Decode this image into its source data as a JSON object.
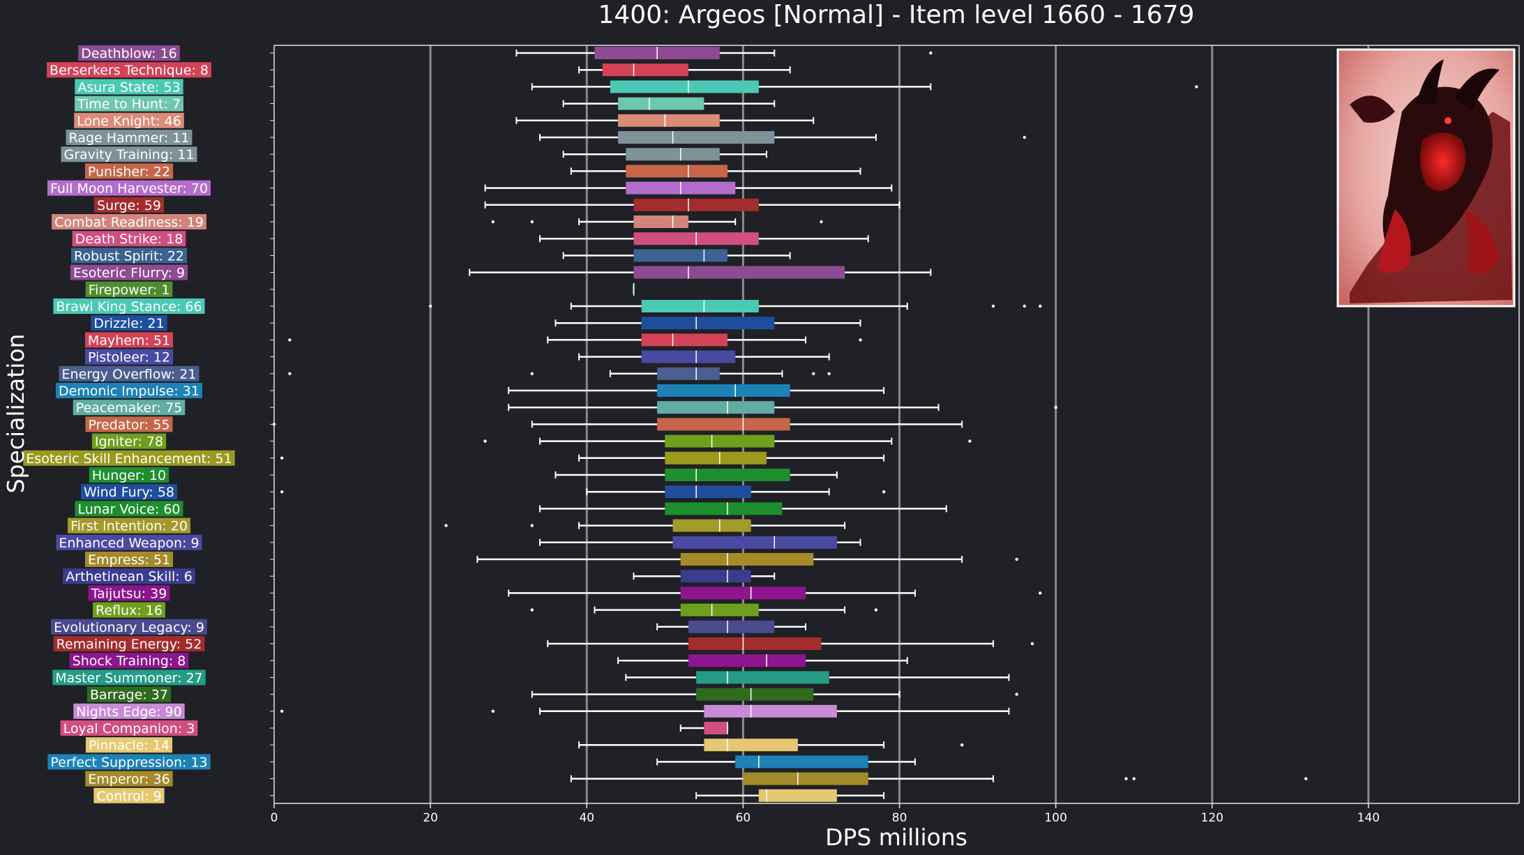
{
  "chart_data": {
    "type": "box",
    "title": "1400: Argeos [Normal] - Item level 1660 - 1679",
    "xlabel": "DPS millions",
    "ylabel": "Specialization",
    "xlim": [
      0,
      159
    ],
    "xticks": [
      0,
      20,
      40,
      60,
      80,
      100,
      120,
      140
    ],
    "grid": "vertical",
    "series": [
      {
        "label": "Deathblow: 16",
        "color": "#8e4b93",
        "min": 31,
        "q1": 41,
        "median": 49,
        "q3": 57,
        "max": 64,
        "outliers": [
          84
        ]
      },
      {
        "label": "Berserkers Technique: 8",
        "color": "#d44258",
        "min": 39,
        "q1": 42,
        "median": 46,
        "q3": 53,
        "max": 66,
        "outliers": []
      },
      {
        "label": "Asura State: 53",
        "color": "#4bc9b4",
        "min": 33,
        "q1": 43,
        "median": 53,
        "q3": 62,
        "max": 84,
        "outliers": [
          118
        ]
      },
      {
        "label": "Time to Hunt: 7",
        "color": "#6fc6b1",
        "min": 37,
        "q1": 44,
        "median": 48,
        "q3": 55,
        "max": 64,
        "outliers": []
      },
      {
        "label": "Lone Knight: 46",
        "color": "#db8b78",
        "min": 31,
        "q1": 44,
        "median": 50,
        "q3": 57,
        "max": 69,
        "outliers": []
      },
      {
        "label": "Rage Hammer: 11",
        "color": "#7e929a",
        "min": 34,
        "q1": 44,
        "median": 51,
        "q3": 64,
        "max": 77,
        "outliers": [
          96
        ]
      },
      {
        "label": "Gravity Training: 11",
        "color": "#7e929a",
        "min": 37,
        "q1": 45,
        "median": 52,
        "q3": 57,
        "max": 63,
        "outliers": []
      },
      {
        "label": "Punisher: 22",
        "color": "#c7664a",
        "min": 38,
        "q1": 45,
        "median": 53,
        "q3": 58,
        "max": 75,
        "outliers": []
      },
      {
        "label": "Full Moon Harvester: 70",
        "color": "#b46dcc",
        "min": 27,
        "q1": 45,
        "median": 52,
        "q3": 59,
        "max": 79,
        "outliers": []
      },
      {
        "label": "Surge: 59",
        "color": "#a32c2c",
        "min": 27,
        "q1": 46,
        "median": 53,
        "q3": 62,
        "max": 80,
        "outliers": []
      },
      {
        "label": "Combat Readiness: 19",
        "color": "#d1857a",
        "min": 39,
        "q1": 46,
        "median": 51,
        "q3": 53,
        "max": 59,
        "outliers": [
          28,
          33,
          70
        ]
      },
      {
        "label": "Death Strike: 18",
        "color": "#d14e80",
        "min": 34,
        "q1": 46,
        "median": 54,
        "q3": 62,
        "max": 76,
        "outliers": []
      },
      {
        "label": "Robust Spirit: 22",
        "color": "#3b6291",
        "min": 37,
        "q1": 46,
        "median": 55,
        "q3": 58,
        "max": 66,
        "outliers": []
      },
      {
        "label": "Esoteric Flurry: 9",
        "color": "#8e4b93",
        "min": 25,
        "q1": 46,
        "median": 53,
        "q3": 73,
        "max": 84,
        "outliers": []
      },
      {
        "label": "Firepower: 1",
        "color": "#4d8f2e",
        "min": 46,
        "q1": 46,
        "median": 46,
        "q3": 46,
        "max": 46,
        "outliers": []
      },
      {
        "label": "Brawl King Stance: 66",
        "color": "#4bc9b4",
        "min": 38,
        "q1": 47,
        "median": 55,
        "q3": 62,
        "max": 81,
        "outliers": [
          20,
          92,
          96,
          98
        ]
      },
      {
        "label": "Drizzle: 21",
        "color": "#1f4e9e",
        "min": 36,
        "q1": 47,
        "median": 54,
        "q3": 64,
        "max": 75,
        "outliers": []
      },
      {
        "label": "Mayhem: 51",
        "color": "#d44258",
        "min": 35,
        "q1": 47,
        "median": 51,
        "q3": 58,
        "max": 68,
        "outliers": [
          2,
          75
        ]
      },
      {
        "label": "Pistoleer: 12",
        "color": "#4a4aa3",
        "min": 39,
        "q1": 47,
        "median": 54,
        "q3": 59,
        "max": 71,
        "outliers": []
      },
      {
        "label": "Energy Overflow: 21",
        "color": "#4c5e8f",
        "min": 43,
        "q1": 49,
        "median": 54,
        "q3": 57,
        "max": 65,
        "outliers": [
          2,
          33,
          69,
          71
        ]
      },
      {
        "label": "Demonic Impulse: 31",
        "color": "#1c82b8",
        "min": 30,
        "q1": 49,
        "median": 59,
        "q3": 66,
        "max": 78,
        "outliers": []
      },
      {
        "label": "Peacemaker: 75",
        "color": "#5fada3",
        "min": 30,
        "q1": 49,
        "median": 58,
        "q3": 64,
        "max": 85,
        "outliers": [
          100
        ]
      },
      {
        "label": "Predator: 55",
        "color": "#c7664a",
        "min": 33,
        "q1": 49,
        "median": 60,
        "q3": 66,
        "max": 88,
        "outliers": [
          0
        ]
      },
      {
        "label": "Igniter: 78",
        "color": "#6f9f1e",
        "min": 34,
        "q1": 50,
        "median": 56,
        "q3": 64,
        "max": 79,
        "outliers": [
          27,
          89
        ]
      },
      {
        "label": "Esoteric Skill Enhancement: 51",
        "color": "#9a9a1e",
        "min": 39,
        "q1": 50,
        "median": 57,
        "q3": 63,
        "max": 78,
        "outliers": [
          1
        ]
      },
      {
        "label": "Hunger: 10",
        "color": "#1e8f2e",
        "min": 36,
        "q1": 50,
        "median": 54,
        "q3": 66,
        "max": 72,
        "outliers": []
      },
      {
        "label": "Wind Fury: 58",
        "color": "#1f4e9e",
        "min": 40,
        "q1": 50,
        "median": 54,
        "q3": 61,
        "max": 71,
        "outliers": [
          1,
          78
        ]
      },
      {
        "label": "Lunar Voice: 60",
        "color": "#1e8f2e",
        "min": 34,
        "q1": 50,
        "median": 58,
        "q3": 65,
        "max": 86,
        "outliers": []
      },
      {
        "label": "First Intention: 20",
        "color": "#a39a2a",
        "min": 39,
        "q1": 51,
        "median": 57,
        "q3": 61,
        "max": 73,
        "outliers": [
          22,
          33
        ]
      },
      {
        "label": "Enhanced Weapon: 9",
        "color": "#4a4aa3",
        "min": 34,
        "q1": 51,
        "median": 64,
        "q3": 72,
        "max": 75,
        "outliers": []
      },
      {
        "label": "Empress: 51",
        "color": "#a58a2a",
        "min": 26,
        "q1": 52,
        "median": 58,
        "q3": 69,
        "max": 88,
        "outliers": [
          95
        ]
      },
      {
        "label": "Arthetinean Skill: 6",
        "color": "#3b3b8f",
        "min": 46,
        "q1": 52,
        "median": 58,
        "q3": 61,
        "max": 64,
        "outliers": []
      },
      {
        "label": "Taijutsu: 39",
        "color": "#8e158e",
        "min": 30,
        "q1": 52,
        "median": 61,
        "q3": 68,
        "max": 82,
        "outliers": [
          98
        ]
      },
      {
        "label": "Reflux: 16",
        "color": "#6f9f1e",
        "min": 41,
        "q1": 52,
        "median": 56,
        "q3": 62,
        "max": 73,
        "outliers": [
          33,
          77
        ]
      },
      {
        "label": "Evolutionary Legacy: 9",
        "color": "#4a4a8f",
        "min": 49,
        "q1": 53,
        "median": 58,
        "q3": 64,
        "max": 68,
        "outliers": []
      },
      {
        "label": "Remaining Energy: 52",
        "color": "#a32c2c",
        "min": 35,
        "q1": 53,
        "median": 60,
        "q3": 70,
        "max": 92,
        "outliers": [
          97
        ]
      },
      {
        "label": "Shock Training: 8",
        "color": "#8e158e",
        "min": 44,
        "q1": 53,
        "median": 63,
        "q3": 68,
        "max": 81,
        "outliers": []
      },
      {
        "label": "Master Summoner: 27",
        "color": "#249c86",
        "min": 45,
        "q1": 54,
        "median": 58,
        "q3": 71,
        "max": 94,
        "outliers": []
      },
      {
        "label": "Barrage: 37",
        "color": "#2f6b1e",
        "min": 33,
        "q1": 54,
        "median": 61,
        "q3": 69,
        "max": 80,
        "outliers": [
          95
        ]
      },
      {
        "label": "Nights Edge: 90",
        "color": "#c98ad6",
        "min": 34,
        "q1": 55,
        "median": 61,
        "q3": 72,
        "max": 94,
        "outliers": [
          1,
          28
        ]
      },
      {
        "label": "Loyal Companion: 3",
        "color": "#d14e80",
        "min": 52,
        "q1": 55,
        "median": 58,
        "q3": 58,
        "max": 58,
        "outliers": []
      },
      {
        "label": "Pinnacle: 14",
        "color": "#e6c870",
        "min": 39,
        "q1": 55,
        "median": 58,
        "q3": 67,
        "max": 78,
        "outliers": [
          88
        ]
      },
      {
        "label": "Perfect Suppression: 13",
        "color": "#1c82b8",
        "min": 49,
        "q1": 59,
        "median": 62,
        "q3": 76,
        "max": 82,
        "outliers": []
      },
      {
        "label": "Emperor: 36",
        "color": "#a58a2a",
        "min": 38,
        "q1": 60,
        "median": 67,
        "q3": 76,
        "max": 92,
        "outliers": [
          109,
          110,
          132
        ]
      },
      {
        "label": "Control: 9",
        "color": "#e6c870",
        "min": 54,
        "q1": 62,
        "median": 63,
        "q3": 72,
        "max": 78,
        "outliers": []
      }
    ]
  },
  "boss_image": {
    "name": "argeos-boss-portrait"
  }
}
